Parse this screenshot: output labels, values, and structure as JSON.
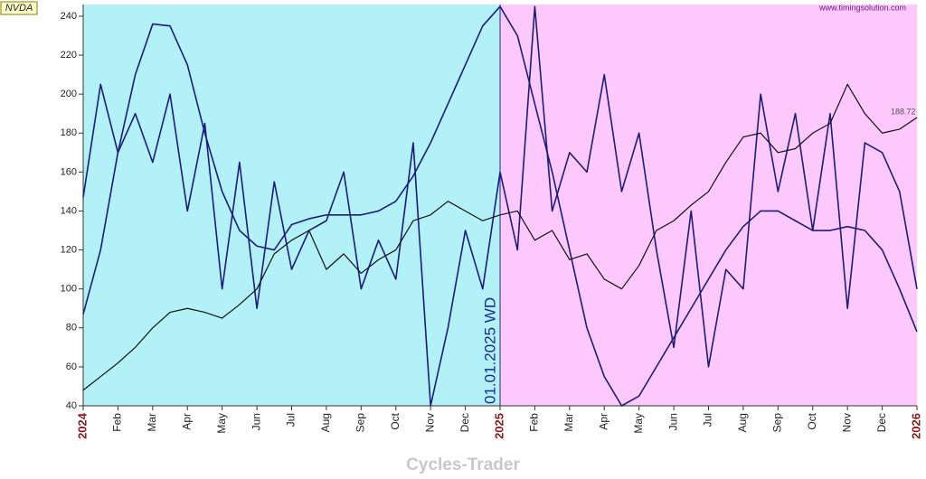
{
  "chart_data": {
    "type": "line",
    "ticker": "NVDA",
    "watermark": "www.timingsolution.com",
    "footer": "Cycles-Trader",
    "last_price_label": "188.72",
    "marker": {
      "x": 2025,
      "label": "01.01.2025 WD",
      "color": "#1a2a8a",
      "left_color": "#b3f1f8",
      "right_color": "#fdc8fb"
    },
    "xlim": [
      2024,
      2026
    ],
    "ylim": [
      40,
      246
    ],
    "yticks": [
      40,
      60,
      80,
      100,
      120,
      140,
      160,
      180,
      200,
      220,
      240
    ],
    "xticks": [
      {
        "value": 2024,
        "label": "2024"
      },
      {
        "value": 2024.0833,
        "label": "Feb"
      },
      {
        "value": 2024.1667,
        "label": "Mar"
      },
      {
        "value": 2024.25,
        "label": "Apr"
      },
      {
        "value": 2024.3333,
        "label": "May"
      },
      {
        "value": 2024.4167,
        "label": "Jun"
      },
      {
        "value": 2024.5,
        "label": "Jul"
      },
      {
        "value": 2024.5833,
        "label": "Aug"
      },
      {
        "value": 2024.6667,
        "label": "Sep"
      },
      {
        "value": 2024.75,
        "label": "Oct"
      },
      {
        "value": 2024.8333,
        "label": "Nov"
      },
      {
        "value": 2024.9167,
        "label": "Dec"
      },
      {
        "value": 2025,
        "label": "2025"
      },
      {
        "value": 2025.0833,
        "label": "Feb"
      },
      {
        "value": 2025.1667,
        "label": "Mar"
      },
      {
        "value": 2025.25,
        "label": "Apr"
      },
      {
        "value": 2025.3333,
        "label": "May"
      },
      {
        "value": 2025.4167,
        "label": "Jun"
      },
      {
        "value": 2025.5,
        "label": "Jul"
      },
      {
        "value": 2025.5833,
        "label": "Aug"
      },
      {
        "value": 2025.6667,
        "label": "Sep"
      },
      {
        "value": 2025.75,
        "label": "Oct"
      },
      {
        "value": 2025.8333,
        "label": "Nov"
      },
      {
        "value": 2025.9167,
        "label": "Dec"
      },
      {
        "value": 2026,
        "label": "2026"
      }
    ],
    "x": [
      2024,
      2024.0417,
      2024.0833,
      2024.125,
      2024.1667,
      2024.2083,
      2024.25,
      2024.2917,
      2024.3333,
      2024.375,
      2024.4167,
      2024.4583,
      2024.5,
      2024.5417,
      2024.5833,
      2024.625,
      2024.6667,
      2024.7083,
      2024.75,
      2024.7917,
      2024.8333,
      2024.875,
      2024.9167,
      2024.9583,
      2025,
      2025.0417,
      2025.0833,
      2025.125,
      2025.1667,
      2025.2083,
      2025.25,
      2025.2917,
      2025.3333,
      2025.375,
      2025.4167,
      2025.4583,
      2025.5,
      2025.5417,
      2025.5833,
      2025.625,
      2025.6667,
      2025.7083,
      2025.75,
      2025.7917,
      2025.8333,
      2025.875,
      2025.9167,
      2025.9583,
      2026
    ],
    "series": [
      {
        "color": "#1c1c7a",
        "values": [
          147,
          205,
          170,
          190,
          165,
          200,
          140,
          185,
          100,
          165,
          90,
          155,
          110,
          130,
          135,
          160,
          100,
          125,
          105,
          175,
          40,
          80,
          130,
          100,
          160,
          120,
          245,
          140,
          170,
          160,
          210,
          150,
          180,
          120,
          70,
          140,
          60,
          110,
          100,
          200,
          150,
          190,
          130,
          190,
          90,
          175,
          170,
          150,
          100
        ]
      },
      {
        "color": "#1c1c7a",
        "values": [
          87,
          120,
          170,
          210,
          236,
          235,
          215,
          180,
          150,
          130,
          122,
          120,
          133,
          136,
          138,
          138,
          138,
          140,
          145,
          158,
          175,
          195,
          215,
          235,
          245,
          230,
          195,
          160,
          120,
          80,
          55,
          40,
          45,
          60,
          75,
          90,
          105,
          120,
          132,
          140,
          140,
          135,
          130,
          130,
          132,
          130,
          120,
          100,
          78
        ]
      },
      {
        "color": "#111111",
        "values": [
          48,
          55,
          62,
          70,
          80,
          88,
          90,
          88,
          85,
          92,
          100,
          118,
          125,
          130,
          110,
          118,
          108,
          115,
          120,
          135,
          138,
          145,
          140,
          135,
          138,
          140,
          125,
          130,
          115,
          118,
          105,
          100,
          112,
          130,
          135,
          143,
          150,
          165,
          178,
          180,
          170,
          172,
          180,
          185,
          205,
          190,
          180,
          182,
          188
        ]
      }
    ]
  }
}
